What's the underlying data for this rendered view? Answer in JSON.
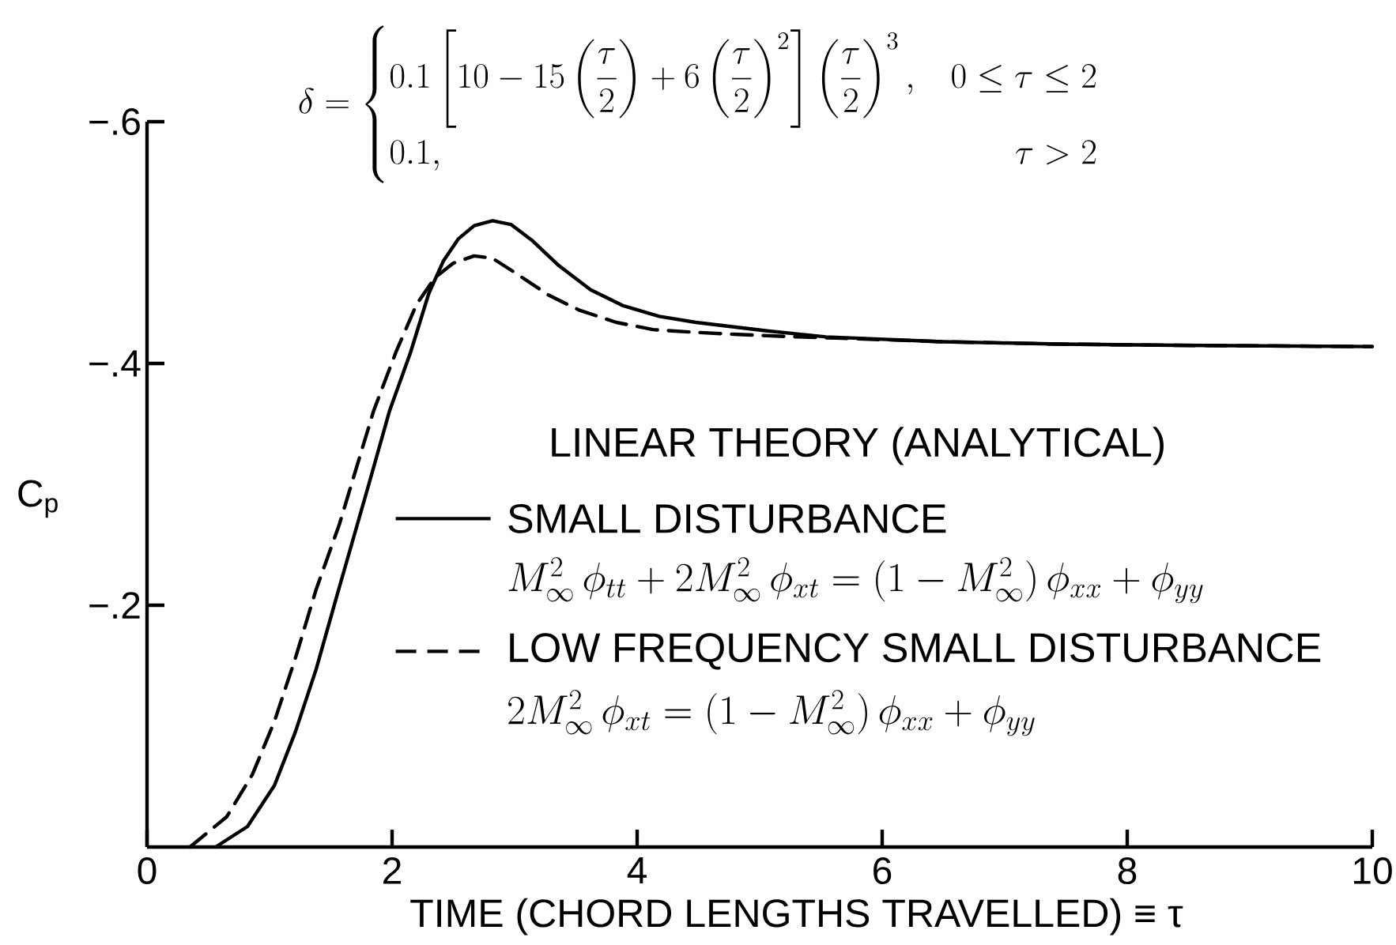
{
  "chart_data": {
    "type": "line",
    "title": "\\delta=\\begin{cases}0.1\\left[10-15\\left(\\dfrac{\\tau}{2}\\right)+6\\left(\\dfrac{\\tau}{2}\\right)^{2}\\right]\\left(\\dfrac{\\tau}{2}\\right)^{3}, & 0\\le\\tau\\le 2\\\\ 0.1, & \\hfill\\tau>2\\end{cases}",
    "xlabel": "TIME (CHORD LENGTHS TRAVELLED) ≡ τ",
    "ylabel": "C$_{p}$",
    "legend_title": "LINEAR THEORY (ANALYTICAL)",
    "annotations": [
      "M_{\\infty}^{2}\\,\\phi_{tt}+2M_{\\infty}^{2}\\,\\phi_{xt}=(1-M_{\\infty}^{2})\\,\\phi_{xx}+\\phi_{yy}",
      "2M_{\\infty}^{2}\\,\\phi_{xt}=(1-M_{\\infty}^{2})\\,\\phi_{xx}+\\phi_{yy}"
    ],
    "xlim": [
      0,
      10
    ],
    "ylim": [
      0,
      -0.6
    ],
    "xticks": [
      0,
      2,
      4,
      6,
      8,
      10
    ],
    "yticks": [
      {
        "value": -0.6,
        "label": "−.6"
      },
      {
        "value": -0.4,
        "label": "−.4"
      },
      {
        "value": -0.2,
        "label": "−.2"
      }
    ],
    "legend": "bottom right",
    "series": [
      {
        "name": "SMALL DISTURBANCE",
        "color": "#000000",
        "line_style": "solid",
        "x": [
          0.56,
          0.82,
          1.04,
          1.21,
          1.38,
          1.55,
          1.81,
          1.98,
          2.15,
          2.3,
          2.42,
          2.54,
          2.67,
          2.82,
          2.97,
          3.14,
          3.36,
          3.62,
          3.88,
          4.18,
          4.48,
          5.06,
          5.54,
          6.49,
          7.45,
          8.4,
          10
        ],
        "values": [
          0,
          -0.017,
          -0.051,
          -0.095,
          -0.147,
          -0.208,
          -0.3,
          -0.361,
          -0.409,
          -0.458,
          -0.485,
          -0.503,
          -0.514,
          -0.518,
          -0.515,
          -0.502,
          -0.481,
          -0.461,
          -0.448,
          -0.439,
          -0.434,
          -0.427,
          -0.422,
          -0.418,
          -0.416,
          -0.415,
          -0.414
        ]
      },
      {
        "name": "LOW FREQUENCY SMALL DISTURBANCE",
        "color": "#000000",
        "line_style": "dashed",
        "x": [
          0.35,
          0.65,
          0.86,
          1.04,
          1.21,
          1.38,
          1.57,
          1.68,
          1.85,
          2.03,
          2.2,
          2.35,
          2.5,
          2.67,
          2.82,
          3.02,
          3.27,
          3.53,
          3.83,
          4.13,
          4.43,
          4.82,
          5.3,
          5.63,
          6.49,
          7.45,
          8.4,
          10
        ],
        "values": [
          0,
          -0.025,
          -0.06,
          -0.104,
          -0.156,
          -0.213,
          -0.267,
          -0.304,
          -0.361,
          -0.409,
          -0.449,
          -0.471,
          -0.483,
          -0.489,
          -0.487,
          -0.474,
          -0.457,
          -0.444,
          -0.434,
          -0.428,
          -0.426,
          -0.424,
          -0.422,
          -0.421,
          -0.418,
          -0.416,
          -0.415,
          -0.414
        ]
      }
    ]
  }
}
